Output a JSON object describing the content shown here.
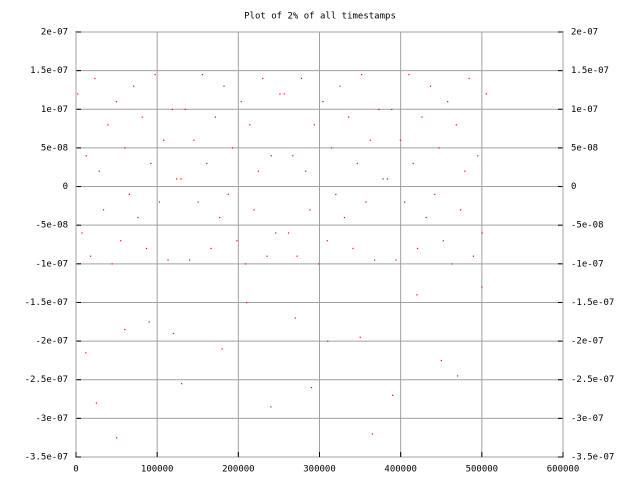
{
  "chart_data": {
    "type": "scatter",
    "title": "Plot of 2% of all timestamps",
    "color": "#ff0000",
    "grid": true,
    "xlim": [
      0,
      600000
    ],
    "xticks": [
      0,
      100000,
      200000,
      300000,
      400000,
      500000,
      600000
    ],
    "ylim": [
      -3.5e-07,
      2e-07
    ],
    "yticks": [
      {
        "value": 2e-07,
        "label": "2e-07"
      },
      {
        "value": 1.5e-07,
        "label": "1.5e-07"
      },
      {
        "value": 1e-07,
        "label": "1e-07"
      },
      {
        "value": 5e-08,
        "label": "5e-08"
      },
      0,
      {
        "value": -5e-08,
        "label": "-5e-08"
      },
      {
        "value": -1e-07,
        "label": "-1e-07"
      },
      {
        "value": -1.5e-07,
        "label": "-1.5e-07"
      },
      {
        "value": -2e-07,
        "label": "-2e-07"
      },
      {
        "value": -2.5e-07,
        "label": "-2.5e-07"
      },
      {
        "value": -3e-07,
        "label": "-3e-07"
      },
      {
        "value": -3.5e-07,
        "label": "-3.5e-07"
      }
    ],
    "x": [
      2000,
      7300,
      12600,
      17900,
      23200,
      28500,
      33800,
      39100,
      44400,
      49700,
      55000,
      60300,
      65600,
      70900,
      76200,
      81500,
      86800,
      92100,
      97400,
      102700,
      108000,
      113300,
      118600,
      123900,
      129200,
      134500,
      139800,
      145100,
      150400,
      155700,
      161000,
      166300,
      171600,
      176900,
      182200,
      187500,
      192800,
      198100,
      203400,
      208700,
      214000,
      219300,
      224600,
      229900,
      235200,
      240500,
      245800,
      251100,
      256400,
      261700,
      267000,
      272300,
      277600,
      282900,
      288200,
      293500,
      298800,
      304100,
      309400,
      314700,
      320000,
      325300,
      330600,
      335900,
      341200,
      346500,
      351800,
      357100,
      362400,
      367700,
      373000,
      378300,
      383600,
      388900,
      394200,
      399500,
      404800,
      410100,
      415400,
      420700,
      426000,
      431300,
      436600,
      441900,
      447200,
      452500,
      457800,
      463100,
      468400,
      473700,
      479000,
      484300,
      489600,
      494900,
      500200,
      505500,
      12000,
      25000,
      50000,
      60000,
      90000,
      120000,
      130000,
      180000,
      240000,
      270000,
      290000,
      310000,
      350000,
      365000,
      390000,
      420000,
      450000,
      470000,
      500000,
      210000
    ],
    "values": [
      1.2e-07,
      -6e-08,
      4e-08,
      -9e-08,
      1.4e-07,
      2e-08,
      -3e-08,
      8e-08,
      -1e-07,
      1.1e-07,
      -7e-08,
      5e-08,
      -1e-08,
      1.3e-07,
      -4e-08,
      9e-08,
      -8e-08,
      3e-08,
      1.45e-07,
      -2e-08,
      6e-08,
      -9.5e-08,
      1e-07,
      1e-08,
      1e-08,
      1e-07,
      -9.5e-08,
      6e-08,
      -2e-08,
      1.45e-07,
      3e-08,
      -8e-08,
      9e-08,
      -4e-08,
      1.3e-07,
      -1e-08,
      5e-08,
      -7e-08,
      1.1e-07,
      -1e-07,
      8e-08,
      -3e-08,
      2e-08,
      1.4e-07,
      -9e-08,
      4e-08,
      -6e-08,
      1.2e-07,
      1.2e-07,
      -6e-08,
      4e-08,
      -9e-08,
      1.4e-07,
      2e-08,
      -3e-08,
      8e-08,
      -1e-07,
      1.1e-07,
      -7e-08,
      5e-08,
      -1e-08,
      1.3e-07,
      -4e-08,
      9e-08,
      -8e-08,
      3e-08,
      1.45e-07,
      -2e-08,
      6e-08,
      -9.5e-08,
      1e-07,
      1e-08,
      1e-08,
      1e-07,
      -9.5e-08,
      6e-08,
      -2e-08,
      1.45e-07,
      3e-08,
      -8e-08,
      9e-08,
      -4e-08,
      1.3e-07,
      -1e-08,
      5e-08,
      -7e-08,
      1.1e-07,
      -1e-07,
      8e-08,
      -3e-08,
      2e-08,
      1.4e-07,
      -9e-08,
      4e-08,
      -6e-08,
      1.2e-07,
      -2.15e-07,
      -2.8e-07,
      -3.25e-07,
      -1.85e-07,
      -1.75e-07,
      -1.9e-07,
      -2.55e-07,
      -2.1e-07,
      -2.85e-07,
      -1.7e-07,
      -2.6e-07,
      -2e-07,
      -1.95e-07,
      -3.2e-07,
      -2.7e-07,
      -1.4e-07,
      -2.25e-07,
      -2.45e-07,
      -1.3e-07,
      -1.5e-07
    ]
  }
}
